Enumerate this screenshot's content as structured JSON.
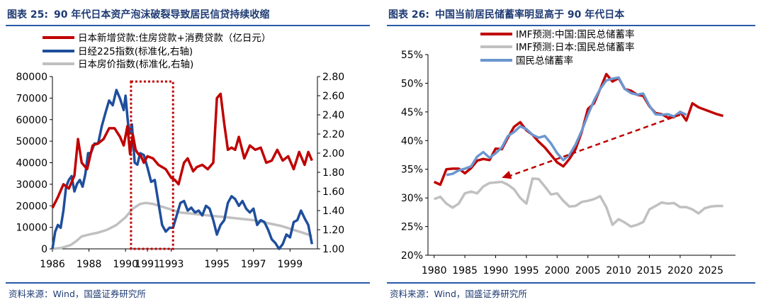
{
  "colors": {
    "red": "#c00000",
    "blue": "#1f4e9c",
    "gray": "#c0c0c0",
    "lightblue": "#6b96cf",
    "title": "#1f3b73",
    "rule": "#2a5aa8"
  },
  "left": {
    "title_fig": "图表 25:",
    "title_text": "90 年代日本资产泡沫破裂导致居民信贷持续收缩",
    "source": "资料来源：Wind，国盛证券研究所"
  },
  "right": {
    "title_fig": "图表 26:",
    "title_text": "中国当前居民储蓄率明显高于 90 年代日本",
    "source": "资料来源：Wind，国盛证券研究所"
  },
  "chart_data": [
    {
      "type": "line",
      "title": "90 年代日本资产泡沫破裂导致居民信贷持续收缩",
      "x_ticks": [
        "1986",
        "1988",
        "1990",
        "1991",
        "1993",
        "1995",
        "1997",
        "1999"
      ],
      "xlim": [
        1986,
        2000.5
      ],
      "y_left": {
        "lim": [
          0,
          80000
        ],
        "ticks": [
          "0",
          "10000",
          "20000",
          "30000",
          "40000",
          "50000",
          "60000",
          "70000",
          "80000"
        ]
      },
      "y_right": {
        "lim": [
          1.0,
          2.8
        ],
        "ticks": [
          "1.00",
          "1.20",
          "1.40",
          "1.60",
          "1.80",
          "2.00",
          "2.20",
          "2.40",
          "2.60",
          "2.80"
        ]
      },
      "legend": [
        "日本新增贷款:住房贷款+消费贷款（亿日元）",
        "日经225指数(标准化,右轴)",
        "日本房价指数(标准化,右轴)"
      ],
      "highlight_range": [
        1990.3,
        1992.6
      ],
      "series": [
        {
          "name": "日本新增贷款:住房贷款+消费贷款（亿日元）",
          "axis": "left",
          "color": "#c00000",
          "x": [
            1986.0,
            1986.3,
            1986.6,
            1986.9,
            1987.2,
            1987.4,
            1987.6,
            1987.9,
            1988.2,
            1988.5,
            1988.8,
            1989.1,
            1989.4,
            1989.7,
            1989.9,
            1990.1,
            1990.25,
            1990.4,
            1990.55,
            1990.7,
            1990.85,
            1991.0,
            1991.2,
            1991.5,
            1991.8,
            1992.0,
            1992.2,
            1992.5,
            1992.7,
            1992.9,
            1993.2,
            1993.4,
            1993.7,
            1993.9,
            1994.2,
            1994.5,
            1994.8,
            1995.0,
            1995.2,
            1995.4,
            1995.6,
            1995.8,
            1996.0,
            1996.2,
            1996.5,
            1996.8,
            1997.1,
            1997.4,
            1997.7,
            1998.0,
            1998.3,
            1998.6,
            1998.9,
            1999.2,
            1999.5,
            1999.8,
            2000.0,
            2000.2
          ],
          "y": [
            19000,
            24000,
            30000,
            28000,
            34000,
            51000,
            40000,
            37000,
            48000,
            49000,
            51000,
            56000,
            56000,
            52000,
            48000,
            57000,
            44000,
            53000,
            46000,
            44000,
            43000,
            40000,
            43000,
            42000,
            39000,
            38000,
            37000,
            33000,
            32000,
            30000,
            40000,
            42000,
            36000,
            38000,
            39000,
            37000,
            40000,
            70000,
            72000,
            58000,
            46000,
            47000,
            46000,
            52000,
            42000,
            48000,
            46000,
            47000,
            40000,
            41000,
            46000,
            41000,
            43000,
            37000,
            45000,
            39000,
            45000,
            41000
          ]
        },
        {
          "name": "日经225指数(标准化,右轴)",
          "axis": "right",
          "color": "#1f4e9c",
          "x": [
            1986.0,
            1986.15,
            1986.3,
            1986.45,
            1986.6,
            1986.75,
            1986.9,
            1987.05,
            1987.2,
            1987.35,
            1987.5,
            1987.65,
            1987.8,
            1987.95,
            1988.1,
            1988.3,
            1988.5,
            1988.7,
            1988.9,
            1989.1,
            1989.3,
            1989.5,
            1989.7,
            1989.9,
            1990.0,
            1990.1,
            1990.2,
            1990.35,
            1990.5,
            1990.65,
            1990.8,
            1991.0,
            1991.2,
            1991.4,
            1991.6,
            1991.8,
            1992.0,
            1992.2,
            1992.4,
            1992.6,
            1992.8,
            1993.0,
            1993.2,
            1993.4,
            1993.6,
            1993.8,
            1994.0,
            1994.2,
            1994.4,
            1994.6,
            1994.8,
            1995.0,
            1995.2,
            1995.4,
            1995.6,
            1995.8,
            1996.0,
            1996.2,
            1996.4,
            1996.6,
            1996.8,
            1997.0,
            1997.2,
            1997.4,
            1997.6,
            1997.8,
            1998.0,
            1998.2,
            1998.4,
            1998.6,
            1998.8,
            1999.0,
            1999.2,
            1999.4,
            1999.6,
            1999.8,
            2000.0,
            2000.2
          ],
          "y": [
            1.0,
            1.18,
            1.25,
            1.22,
            1.4,
            1.65,
            1.72,
            1.76,
            1.6,
            1.68,
            1.72,
            1.65,
            1.78,
            2.0,
            2.0,
            2.1,
            2.1,
            2.28,
            2.42,
            2.55,
            2.5,
            2.66,
            2.57,
            2.45,
            2.6,
            2.38,
            2.2,
            2.3,
            1.9,
            1.88,
            2.0,
            1.98,
            1.85,
            1.7,
            1.72,
            1.48,
            1.25,
            1.18,
            1.22,
            1.22,
            1.35,
            1.48,
            1.5,
            1.4,
            1.43,
            1.38,
            1.4,
            1.35,
            1.45,
            1.42,
            1.3,
            1.15,
            1.25,
            1.3,
            1.48,
            1.55,
            1.52,
            1.45,
            1.5,
            1.42,
            1.38,
            1.42,
            1.25,
            1.3,
            1.28,
            1.2,
            1.1,
            1.06,
            1.0,
            1.05,
            1.15,
            1.12,
            1.28,
            1.3,
            1.4,
            1.32,
            1.25,
            1.05
          ]
        },
        {
          "name": "日本房价指数(标准化,右轴)",
          "axis": "right",
          "color": "#c0c0c0",
          "x": [
            1986.0,
            1986.5,
            1987.0,
            1987.3,
            1987.6,
            1988.0,
            1988.5,
            1989.0,
            1989.5,
            1990.0,
            1990.4,
            1990.8,
            1991.1,
            1991.5,
            1992.0,
            1992.5,
            1993.0,
            1993.5,
            1994.0,
            1994.5,
            1995.0,
            1995.5,
            1996.0,
            1996.5,
            1997.0,
            1997.5,
            1998.0,
            1998.5,
            1999.0,
            1999.5,
            2000.0,
            2000.2
          ],
          "y": [
            1.0,
            1.01,
            1.04,
            1.08,
            1.13,
            1.15,
            1.17,
            1.2,
            1.25,
            1.33,
            1.42,
            1.47,
            1.48,
            1.47,
            1.44,
            1.41,
            1.38,
            1.37,
            1.36,
            1.35,
            1.34,
            1.33,
            1.32,
            1.31,
            1.3,
            1.28,
            1.26,
            1.24,
            1.21,
            1.18,
            1.15,
            1.13
          ]
        }
      ]
    },
    {
      "type": "line",
      "title": "中国当前居民储蓄率明显高于 90 年代日本",
      "x_ticks": [
        "1980",
        "1985",
        "1990",
        "1995",
        "2000",
        "2005",
        "2010",
        "2015",
        "2020",
        "2025"
      ],
      "xlim": [
        1979,
        2029
      ],
      "ylim": [
        20,
        55
      ],
      "y_ticks": [
        "20%",
        "25%",
        "30%",
        "35%",
        "40%",
        "45%",
        "50%",
        "55%"
      ],
      "legend": [
        "IMF预测:中国:国民总储蓄率",
        "IMF预测:日本:国民总储蓄率",
        "国民总储蓄率"
      ],
      "annotation_arrow": {
        "from": [
          2020,
          44.5
        ],
        "to": [
          1991,
          33.5
        ]
      },
      "series": [
        {
          "name": "IMF预测:中国:国民总储蓄率",
          "color": "#c00000",
          "x": [
            1980,
            1981,
            1982,
            1983,
            1984,
            1985,
            1986,
            1987,
            1988,
            1989,
            1990,
            1991,
            1992,
            1993,
            1994,
            1995,
            1996,
            1997,
            1998,
            1999,
            2000,
            2001,
            2002,
            2003,
            2004,
            2005,
            2006,
            2007,
            2008,
            2009,
            2010,
            2011,
            2012,
            2013,
            2014,
            2015,
            2016,
            2017,
            2018,
            2019,
            2020,
            2021,
            2022,
            2023,
            2024,
            2025,
            2026,
            2027
          ],
          "y": [
            32.8,
            32.3,
            35.0,
            35.1,
            35.1,
            34.3,
            35.2,
            36.5,
            36.8,
            36.6,
            38.6,
            38.5,
            40.5,
            42.4,
            43.2,
            41.8,
            41.0,
            39.8,
            38.8,
            37.5,
            36.2,
            35.5,
            36.8,
            38.5,
            41.5,
            45.5,
            46.5,
            49.0,
            51.6,
            50.3,
            50.9,
            49.0,
            48.7,
            48.0,
            47.8,
            46.0,
            44.8,
            44.6,
            44.0,
            44.1,
            45.0,
            43.5,
            46.5,
            45.8,
            45.4,
            45.0,
            44.6,
            44.3
          ]
        },
        {
          "name": "IMF预测:日本:国民总储蓄率",
          "color": "#c0c0c0",
          "x": [
            1980,
            1981,
            1982,
            1983,
            1984,
            1985,
            1986,
            1987,
            1988,
            1989,
            1990,
            1991,
            1992,
            1993,
            1994,
            1995,
            1996,
            1997,
            1998,
            1999,
            2000,
            2001,
            2002,
            2003,
            2004,
            2005,
            2006,
            2007,
            2008,
            2009,
            2010,
            2011,
            2012,
            2013,
            2014,
            2015,
            2016,
            2017,
            2018,
            2019,
            2020,
            2021,
            2022,
            2023,
            2024,
            2025,
            2026,
            2027
          ],
          "y": [
            29.8,
            30.2,
            29.0,
            28.3,
            29.0,
            30.8,
            31.1,
            30.8,
            32.0,
            32.6,
            32.7,
            32.8,
            32.3,
            31.5,
            30.0,
            29.0,
            33.4,
            33.3,
            32.0,
            30.6,
            30.8,
            29.5,
            28.5,
            28.6,
            29.3,
            29.5,
            29.8,
            30.3,
            28.4,
            25.3,
            26.3,
            25.7,
            25.0,
            25.3,
            25.8,
            28.0,
            28.6,
            29.2,
            29.0,
            29.1,
            28.4,
            28.4,
            28.0,
            27.3,
            28.2,
            28.5,
            28.6,
            28.6
          ]
        },
        {
          "name": "国民总储蓄率",
          "color": "#6b96cf",
          "x": [
            1982,
            1983,
            1984,
            1985,
            1986,
            1987,
            1988,
            1989,
            1990,
            1991,
            1992,
            1993,
            1994,
            1995,
            1996,
            1997,
            1998,
            1999,
            2000,
            2001,
            2002,
            2003,
            2004,
            2005,
            2006,
            2007,
            2008,
            2009,
            2010,
            2011,
            2012,
            2013,
            2014,
            2015,
            2016,
            2017,
            2018,
            2019,
            2020,
            2021
          ],
          "y": [
            34.0,
            34.2,
            34.8,
            35.1,
            35.5,
            37.2,
            38.0,
            37.0,
            37.8,
            38.8,
            40.8,
            41.5,
            42.5,
            42.0,
            41.0,
            40.5,
            40.8,
            39.5,
            37.8,
            36.6,
            37.5,
            39.3,
            41.7,
            44.5,
            47.0,
            49.0,
            50.5,
            50.8,
            51.0,
            49.0,
            48.3,
            48.0,
            48.2,
            46.1,
            44.6,
            44.5,
            44.6,
            44.2,
            45.0,
            44.5
          ]
        }
      ]
    }
  ]
}
